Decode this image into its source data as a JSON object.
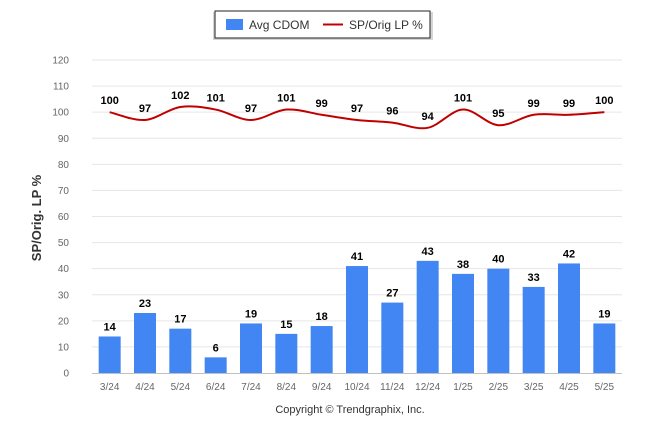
{
  "chart_data": {
    "type": "bar",
    "categories": [
      "3/24",
      "4/24",
      "5/24",
      "6/24",
      "7/24",
      "8/24",
      "9/24",
      "10/24",
      "11/24",
      "12/24",
      "1/25",
      "2/25",
      "3/25",
      "4/25",
      "5/25"
    ],
    "series": [
      {
        "name": "Avg CDOM",
        "type": "bar",
        "color": "#4286f4",
        "values": [
          14,
          23,
          17,
          6,
          19,
          15,
          18,
          41,
          27,
          43,
          38,
          40,
          33,
          42,
          19
        ]
      },
      {
        "name": "SP/Orig LP %",
        "type": "line",
        "color": "#c00000",
        "values": [
          100,
          97,
          102,
          101,
          97,
          101,
          99,
          97,
          96,
          94,
          101,
          95,
          99,
          99,
          100
        ]
      }
    ],
    "ylabel": "SP/Orig. LP %",
    "ylim": [
      0,
      120
    ],
    "yticks": [
      0,
      10,
      20,
      30,
      40,
      50,
      60,
      70,
      80,
      90,
      100,
      110,
      120
    ],
    "grid": true,
    "legend_position": "top-center"
  },
  "footer": {
    "copyright": "Copyright © Trendgraphix, Inc."
  }
}
